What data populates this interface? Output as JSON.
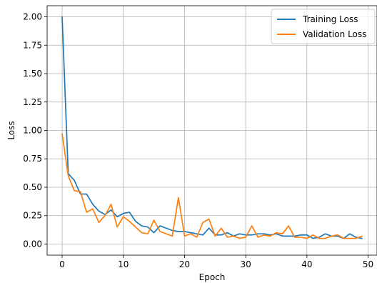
{
  "chart_data": {
    "type": "line",
    "title": "",
    "xlabel": "Epoch",
    "ylabel": "Loss",
    "xlim": [
      -2.45,
      51.45
    ],
    "ylim": [
      -0.0975,
      2.0975
    ],
    "xticks": [
      0,
      10,
      20,
      30,
      40,
      50
    ],
    "yticks": [
      0.0,
      0.25,
      0.5,
      0.75,
      1.0,
      1.25,
      1.5,
      1.75,
      2.0
    ],
    "xtick_labels": [
      "0",
      "10",
      "20",
      "30",
      "40",
      "50"
    ],
    "ytick_labels": [
      "0.00",
      "0.25",
      "0.50",
      "0.75",
      "1.00",
      "1.25",
      "1.50",
      "1.75",
      "2.00"
    ],
    "grid": true,
    "legend_position": "top-right",
    "x": [
      0,
      1,
      2,
      3,
      4,
      5,
      6,
      7,
      8,
      9,
      10,
      11,
      12,
      13,
      14,
      15,
      16,
      17,
      18,
      19,
      20,
      21,
      22,
      23,
      24,
      25,
      26,
      27,
      28,
      29,
      30,
      31,
      32,
      33,
      34,
      35,
      36,
      37,
      38,
      39,
      40,
      41,
      42,
      43,
      44,
      45,
      46,
      47,
      48,
      49
    ],
    "series": [
      {
        "name": "Training Loss",
        "color": "#1f77b4",
        "values": [
          2.0,
          0.62,
          0.56,
          0.44,
          0.44,
          0.35,
          0.29,
          0.26,
          0.3,
          0.24,
          0.27,
          0.28,
          0.2,
          0.16,
          0.15,
          0.1,
          0.16,
          0.14,
          0.12,
          0.11,
          0.11,
          0.1,
          0.09,
          0.08,
          0.14,
          0.08,
          0.08,
          0.1,
          0.07,
          0.09,
          0.08,
          0.08,
          0.09,
          0.09,
          0.08,
          0.09,
          0.07,
          0.07,
          0.07,
          0.08,
          0.08,
          0.05,
          0.06,
          0.09,
          0.07,
          0.07,
          0.05,
          0.09,
          0.06,
          0.05
        ]
      },
      {
        "name": "Validation Loss",
        "color": "#ff7f0e",
        "values": [
          0.97,
          0.6,
          0.47,
          0.46,
          0.28,
          0.31,
          0.19,
          0.25,
          0.35,
          0.15,
          0.24,
          0.2,
          0.15,
          0.1,
          0.09,
          0.21,
          0.11,
          0.09,
          0.07,
          0.41,
          0.07,
          0.09,
          0.06,
          0.19,
          0.22,
          0.07,
          0.14,
          0.06,
          0.07,
          0.05,
          0.06,
          0.16,
          0.06,
          0.08,
          0.07,
          0.1,
          0.09,
          0.16,
          0.06,
          0.06,
          0.05,
          0.08,
          0.05,
          0.05,
          0.07,
          0.08,
          0.05,
          0.05,
          0.05,
          0.07
        ]
      }
    ]
  }
}
